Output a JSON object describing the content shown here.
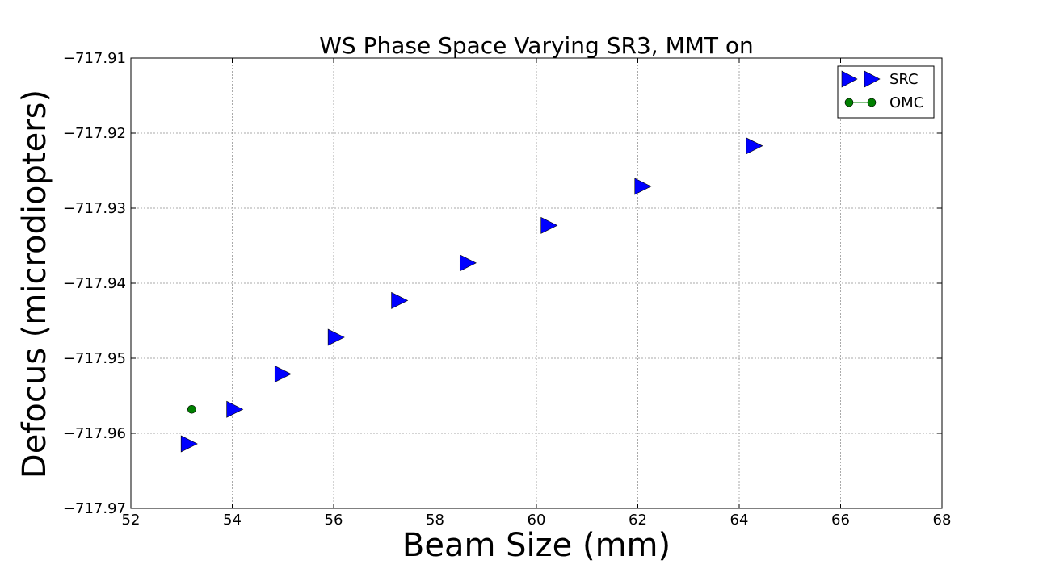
{
  "chart_data": {
    "type": "scatter",
    "title": "WS Phase Space Varying SR3, MMT on",
    "xlabel": "Beam Size (mm)",
    "ylabel": "Defocus (microdiopters)",
    "xlim": [
      52,
      68
    ],
    "ylim": [
      -717.97,
      -717.91
    ],
    "xticks": [
      52,
      54,
      56,
      58,
      60,
      62,
      64,
      66,
      68
    ],
    "xtick_labels": [
      "52",
      "54",
      "56",
      "58",
      "60",
      "62",
      "64",
      "66",
      "68"
    ],
    "yticks": [
      -717.91,
      -717.92,
      -717.93,
      -717.94,
      -717.95,
      -717.96,
      -717.97
    ],
    "ytick_labels": [
      "−717.91",
      "−717.92",
      "−717.93",
      "−717.94",
      "−717.95",
      "−717.96",
      "−717.97"
    ],
    "grid": true,
    "legend_position": "top-right",
    "series": [
      {
        "name": "SRC",
        "marker": "triangle-right",
        "color": "#0000ff",
        "x": [
          53.15,
          54.05,
          55.0,
          56.05,
          57.3,
          58.65,
          60.25,
          62.1,
          64.3
        ],
        "y": [
          -717.9614,
          -717.9568,
          -717.9521,
          -717.9472,
          -717.9423,
          -717.9373,
          -717.9323,
          -717.9271,
          -717.9217
        ]
      },
      {
        "name": "OMC",
        "marker": "circle",
        "color": "#008000",
        "x": [
          53.2
        ],
        "y": [
          -717.9568
        ]
      }
    ]
  }
}
